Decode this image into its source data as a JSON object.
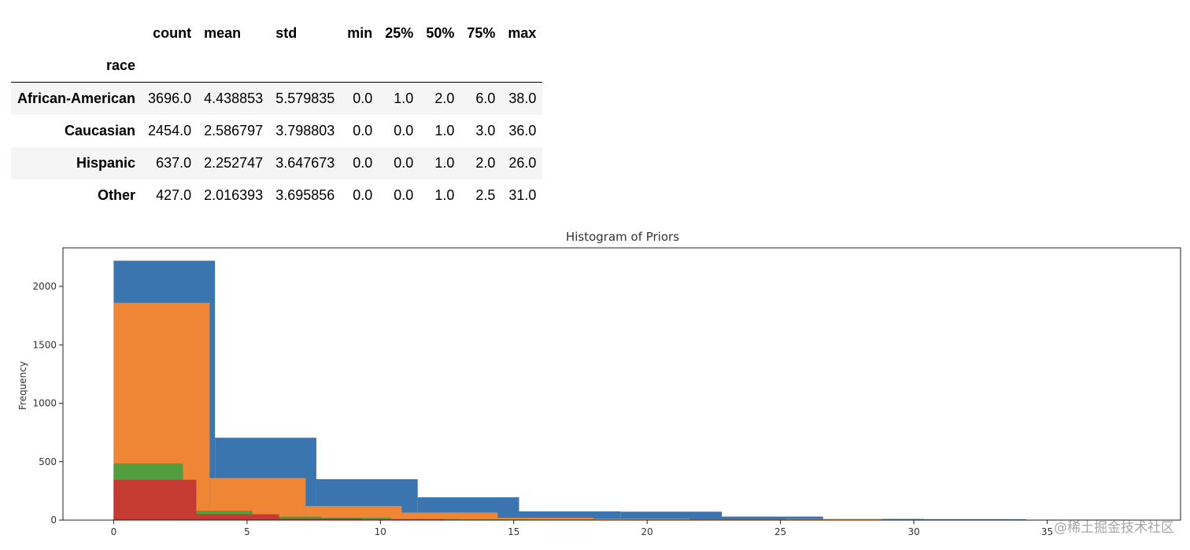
{
  "table": {
    "columns": [
      "count",
      "mean",
      "std",
      "min",
      "25%",
      "50%",
      "75%",
      "max"
    ],
    "index_name": "race",
    "rows": [
      {
        "label": "African-American",
        "values": [
          "3696.0",
          "4.438853",
          "5.579835",
          "0.0",
          "1.0",
          "2.0",
          "6.0",
          "38.0"
        ]
      },
      {
        "label": "Caucasian",
        "values": [
          "2454.0",
          "2.586797",
          "3.798803",
          "0.0",
          "0.0",
          "1.0",
          "3.0",
          "36.0"
        ]
      },
      {
        "label": "Hispanic",
        "values": [
          "637.0",
          "2.252747",
          "3.647673",
          "0.0",
          "0.0",
          "1.0",
          "2.0",
          "26.0"
        ]
      },
      {
        "label": "Other",
        "values": [
          "427.0",
          "2.016393",
          "3.695856",
          "0.0",
          "0.0",
          "1.0",
          "2.5",
          "31.0"
        ]
      }
    ]
  },
  "watermark": "@稀土掘金技术社区",
  "chart_data": {
    "type": "histogram",
    "title": "Histogram of Priors",
    "xlabel": "",
    "ylabel": "Frequency",
    "xlim": [
      -1.9,
      40.0
    ],
    "ylim": [
      0,
      2330
    ],
    "xticks": [
      0,
      5,
      10,
      15,
      20,
      25,
      30,
      35
    ],
    "yticks": [
      0,
      500,
      1000,
      1500,
      2000
    ],
    "grid": false,
    "series": [
      {
        "color": "#3a75af",
        "bins": [
          [
            0,
            3.8,
            2220
          ],
          [
            3.8,
            7.6,
            705
          ],
          [
            7.6,
            11.4,
            350
          ],
          [
            11.4,
            15.2,
            195
          ],
          [
            15.2,
            19.0,
            75
          ],
          [
            19.0,
            22.8,
            72
          ],
          [
            22.8,
            26.6,
            30
          ],
          [
            26.6,
            30.4,
            10
          ],
          [
            30.4,
            34.2,
            8
          ],
          [
            34.2,
            38.0,
            4
          ]
        ]
      },
      {
        "color": "#ef8636",
        "bins": [
          [
            0,
            3.6,
            1860
          ],
          [
            3.6,
            7.2,
            360
          ],
          [
            7.2,
            10.8,
            120
          ],
          [
            10.8,
            14.4,
            65
          ],
          [
            14.4,
            18.0,
            20
          ],
          [
            18.0,
            21.6,
            12
          ],
          [
            21.6,
            25.2,
            6
          ],
          [
            25.2,
            28.8,
            10
          ],
          [
            28.8,
            32.4,
            3
          ],
          [
            32.4,
            36.0,
            2
          ]
        ]
      },
      {
        "color": "#529e3f",
        "bins": [
          [
            0,
            2.6,
            485
          ],
          [
            2.6,
            5.2,
            80
          ],
          [
            5.2,
            7.8,
            30
          ],
          [
            7.8,
            10.4,
            20
          ],
          [
            10.4,
            13.0,
            8
          ],
          [
            13.0,
            15.6,
            5
          ],
          [
            15.6,
            18.2,
            4
          ],
          [
            18.2,
            20.8,
            3
          ],
          [
            20.8,
            23.4,
            1
          ],
          [
            23.4,
            26.0,
            1
          ]
        ]
      },
      {
        "color": "#c53a32",
        "bins": [
          [
            0,
            3.1,
            345
          ],
          [
            3.1,
            6.2,
            50
          ],
          [
            6.2,
            9.3,
            15
          ],
          [
            9.3,
            12.4,
            8
          ],
          [
            12.4,
            15.5,
            4
          ],
          [
            15.5,
            18.6,
            2
          ],
          [
            18.6,
            21.7,
            1
          ],
          [
            21.7,
            24.8,
            1
          ],
          [
            24.8,
            27.9,
            1
          ],
          [
            27.9,
            31.0,
            1
          ]
        ]
      }
    ]
  }
}
